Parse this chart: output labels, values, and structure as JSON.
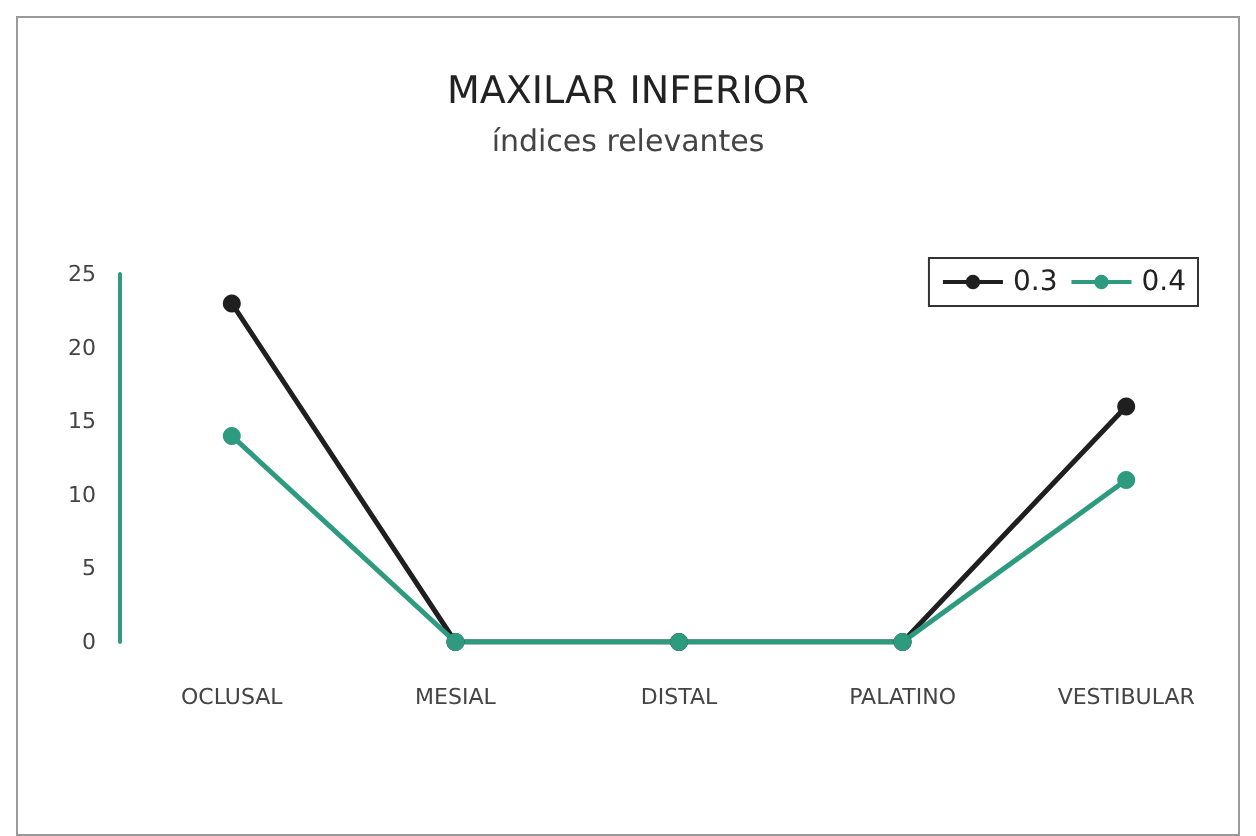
{
  "chart_data": {
    "type": "line",
    "title": "MAXILAR INFERIOR",
    "subtitle": "índices relevantes",
    "categories": [
      "OCLUSAL",
      "MESIAL",
      "DISTAL",
      "PALATINO",
      "VESTIBULAR"
    ],
    "series": [
      {
        "name": "0.3",
        "color": "#1f1f1f",
        "values": [
          23,
          0,
          0,
          0,
          16
        ]
      },
      {
        "name": "0.4",
        "color": "#2e9a7f",
        "values": [
          14,
          0,
          0,
          0,
          11
        ]
      }
    ],
    "ylim": [
      0,
      25
    ],
    "yticks": [
      0,
      5,
      10,
      15,
      20,
      25
    ],
    "grid": false,
    "legend": "top right",
    "marker": "circle",
    "line_style": "solid"
  }
}
